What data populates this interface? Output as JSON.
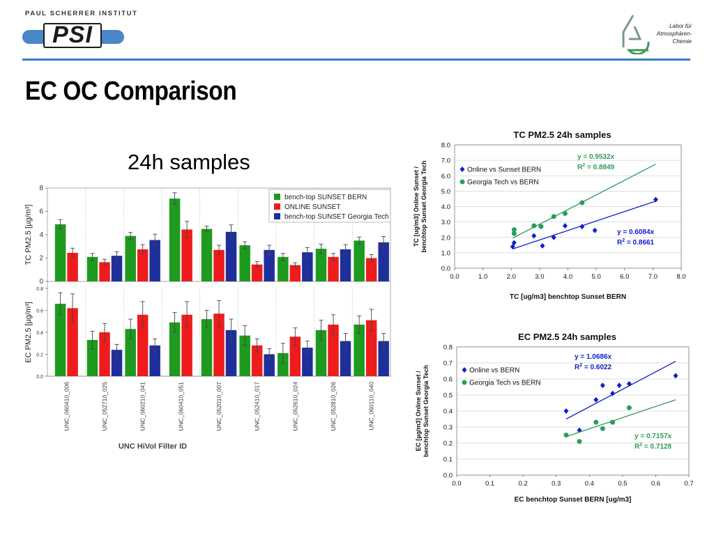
{
  "header": {
    "org": "PAUL SCHERRER INSTITUT",
    "logo": "PSI",
    "lab_line1": "Labor für",
    "lab_line2": "Atmosphären-",
    "lab_line3": "Chemie"
  },
  "slide": {
    "title": "EC OC Comparison",
    "subtitle": "24h samples"
  },
  "colors": {
    "accent": "#3a7fc4",
    "green": "#1e9a1e",
    "red": "#ee1c1c",
    "blue": "#1f2f9a",
    "online": "#1020c8",
    "gt": "#2e9c5a"
  },
  "chart_data": [
    {
      "type": "bar",
      "title": "",
      "xlabel": "UNC HiVol Filter ID",
      "categories": [
        "UNC_060410_006",
        "UNC_052710_025",
        "UNC_060210_041",
        "UNC_060410_051",
        "UNC_052010_007",
        "UNC_052410_017",
        "UNC_052610_024",
        "UNC_052810_026",
        "UNC_060110_040"
      ],
      "legend": "top-right",
      "panels": [
        {
          "ylabel": "TC PM2.5 [µg/m³]",
          "ylim": [
            0,
            8
          ],
          "yticks": [
            "0",
            "2",
            "4",
            "6",
            "8"
          ],
          "series": [
            {
              "name": "bench-top SUNSET BERN",
              "values": [
                4.9,
                2.1,
                3.9,
                7.1,
                4.5,
                3.1,
                2.1,
                2.8,
                3.5
              ],
              "errors": [
                0.4,
                0.3,
                0.3,
                0.5,
                0.25,
                0.3,
                0.3,
                0.4,
                0.3
              ]
            },
            {
              "name": "ONLINE SUNSET",
              "values": [
                2.45,
                1.65,
                2.75,
                4.45,
                2.7,
                1.45,
                1.4,
                2.1,
                2.0
              ],
              "errors": [
                0.4,
                0.25,
                0.4,
                0.7,
                0.4,
                0.25,
                0.2,
                0.3,
                0.3
              ]
            },
            {
              "name": "bench-top SUNSET Georgia Tech",
              "values": [
                null,
                2.2,
                3.55,
                null,
                4.25,
                2.7,
                2.5,
                2.75,
                3.35
              ],
              "errors": [
                0,
                0.35,
                0.5,
                0,
                0.6,
                0.4,
                0.4,
                0.4,
                0.5
              ]
            }
          ]
        },
        {
          "ylabel": "EC PM2.5 [µg/m³]",
          "ylim": [
            0,
            0.8
          ],
          "yticks": [
            "0.0",
            "0.2",
            "0.4",
            "0.6",
            "0.8"
          ],
          "series": [
            {
              "name": "bench-top SUNSET BERN",
              "values": [
                0.66,
                0.33,
                0.43,
                0.49,
                0.52,
                0.37,
                0.21,
                0.42,
                0.47
              ],
              "errors": [
                0.1,
                0.08,
                0.09,
                0.09,
                0.08,
                0.09,
                0.09,
                0.09,
                0.08
              ]
            },
            {
              "name": "ONLINE SUNSET",
              "values": [
                0.62,
                0.4,
                0.56,
                0.56,
                0.57,
                0.28,
                0.36,
                0.47,
                0.51
              ],
              "errors": [
                0.13,
                0.08,
                0.12,
                0.12,
                0.12,
                0.06,
                0.08,
                0.09,
                0.1
              ]
            },
            {
              "name": "bench-top SUNSET Georgia Tech",
              "values": [
                null,
                0.24,
                0.28,
                null,
                0.42,
                0.2,
                0.26,
                0.32,
                0.32
              ],
              "errors": [
                0,
                0.05,
                0.06,
                0,
                0.1,
                0.05,
                0.06,
                0.07,
                0.07
              ]
            }
          ]
        }
      ]
    },
    {
      "type": "scatter",
      "title": "TC PM2.5 24h samples",
      "xlabel": "TC [ug/m3] benchtop Sunset BERN",
      "ylabel_line1": "TC [ug/m3] Online Sunset /",
      "ylabel_line2": "benchtop Sunset Georgia Tech",
      "xlim": [
        0,
        8
      ],
      "ylim": [
        0,
        8
      ],
      "xticks": [
        "0.0",
        "1.0",
        "2.0",
        "3.0",
        "4.0",
        "5.0",
        "6.0",
        "7.0",
        "8.0"
      ],
      "yticks": [
        "0.0",
        "1.0",
        "2.0",
        "3.0",
        "4.0",
        "5.0",
        "6.0",
        "7.0",
        "8.0"
      ],
      "legend": "top-left",
      "series": [
        {
          "name": "Online vs Sunset BERN",
          "marker": "diamond",
          "x": [
            2.05,
            2.1,
            2.8,
            3.1,
            3.5,
            3.9,
            4.5,
            4.95,
            7.1
          ],
          "y": [
            1.4,
            1.65,
            2.1,
            1.45,
            2.0,
            2.75,
            2.7,
            2.45,
            4.45
          ],
          "fit": {
            "x": [
              2.05,
              7.1
            ],
            "y": [
              1.25,
              4.35
            ]
          },
          "equation": "y = 0.6084x",
          "r2_label": "R",
          "r2_value": " = 0.8661"
        },
        {
          "name": "Georgia Tech vs BERN",
          "marker": "circle",
          "x": [
            2.1,
            2.1,
            2.8,
            3.05,
            3.5,
            3.9,
            4.5
          ],
          "y": [
            2.5,
            2.25,
            2.75,
            2.7,
            3.35,
            3.55,
            4.25
          ],
          "fit": {
            "x": [
              2.05,
              7.1
            ],
            "y": [
              1.95,
              6.75
            ]
          },
          "equation": "y = 0.9532x",
          "r2_label": "R",
          "r2_value": " = 0.8849"
        }
      ]
    },
    {
      "type": "scatter",
      "title": "EC PM2.5 24h samples",
      "xlabel": "EC benchtop Sunset BERN [ug/m3]",
      "ylabel_line1": "EC [µg/m3] Online Sunset /",
      "ylabel_line2": "benchtop Sunset Georgia Tech",
      "xlim": [
        0,
        0.7
      ],
      "ylim": [
        0,
        0.8
      ],
      "xticks": [
        "0.0",
        "0.1",
        "0.2",
        "0.3",
        "0.4",
        "0.5",
        "0.6",
        "0.7"
      ],
      "yticks": [
        "0.0",
        "0.1",
        "0.2",
        "0.3",
        "0.4",
        "0.5",
        "0.6",
        "0.7",
        "0.8"
      ],
      "legend": "top-left",
      "series": [
        {
          "name": "Online vs BERN",
          "marker": "diamond",
          "x": [
            0.33,
            0.37,
            0.42,
            0.44,
            0.47,
            0.49,
            0.52,
            0.66
          ],
          "y": [
            0.4,
            0.28,
            0.47,
            0.56,
            0.51,
            0.56,
            0.57,
            0.62
          ],
          "fit": {
            "x": [
              0.33,
              0.66
            ],
            "y": [
              0.35,
              0.71
            ]
          },
          "equation": "y = 1.0686x",
          "r2_label": "R",
          "r2_value": " = 0.6022"
        },
        {
          "name": "Georgia Tech vs BERN",
          "marker": "circle",
          "x": [
            0.33,
            0.37,
            0.42,
            0.44,
            0.47,
            0.52
          ],
          "y": [
            0.25,
            0.21,
            0.33,
            0.29,
            0.33,
            0.42
          ],
          "fit": {
            "x": [
              0.33,
              0.66
            ],
            "y": [
              0.24,
              0.47
            ]
          },
          "equation": "y = 0.7157x",
          "r2_label": "R",
          "r2_value": " = 0.7128"
        }
      ]
    }
  ]
}
